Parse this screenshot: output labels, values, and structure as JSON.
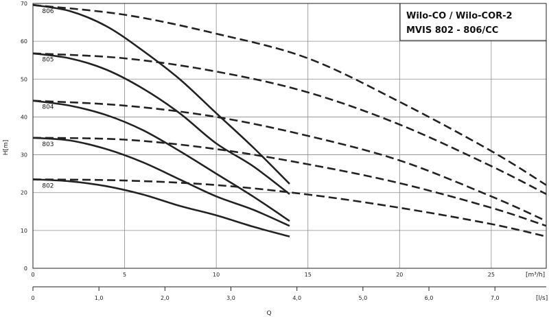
{
  "chart_data": {
    "type": "line",
    "title_lines": [
      "Wilo-CO / Wilo-COR-2",
      "MVIS 802 - 806/CC"
    ],
    "ylabel": "H[m]",
    "xlabel": "Q",
    "x_unit_main": "[m³/h]",
    "x_unit_secondary": "[l/s]",
    "xlim": [
      0,
      28
    ],
    "ylim": [
      0,
      70
    ],
    "x_ticks": [
      "0",
      "5",
      "10",
      "15",
      "20",
      "25"
    ],
    "x_tick_values": [
      0,
      5,
      10,
      15,
      20,
      25
    ],
    "y_ticks": [
      "0",
      "10",
      "20",
      "30",
      "40",
      "50",
      "60",
      "70"
    ],
    "y_tick_values": [
      0,
      10,
      20,
      30,
      40,
      50,
      60,
      70
    ],
    "secondary_ticks": [
      "0",
      "1,0",
      "2,0",
      "3,0",
      "4,0",
      "5,0",
      "6,0",
      "7,0"
    ],
    "secondary_tick_values": [
      0,
      1,
      2,
      3,
      4,
      5,
      6,
      7
    ],
    "grid": true,
    "series": [
      {
        "name": "806",
        "style": "solid",
        "x": [
          0,
          2,
          4,
          6,
          8,
          10,
          12,
          14
        ],
        "y": [
          69.6,
          68.0,
          64.0,
          57.5,
          50.0,
          41.0,
          32.0,
          22.3
        ]
      },
      {
        "name": "805",
        "style": "solid",
        "x": [
          0,
          2,
          4,
          6,
          8,
          10,
          12,
          14
        ],
        "y": [
          56.8,
          55.5,
          52.5,
          47.5,
          41.0,
          33.0,
          27.0,
          19.6
        ]
      },
      {
        "name": "804",
        "style": "solid",
        "x": [
          0,
          2,
          4,
          6,
          8,
          10,
          12,
          14
        ],
        "y": [
          44.3,
          43.0,
          40.5,
          36.5,
          31.0,
          25.0,
          19.0,
          12.5
        ]
      },
      {
        "name": "803",
        "style": "solid",
        "x": [
          0,
          2,
          4,
          6,
          8,
          10,
          12,
          14
        ],
        "y": [
          34.5,
          33.8,
          31.5,
          28.0,
          23.5,
          19.0,
          15.5,
          11.2
        ]
      },
      {
        "name": "802",
        "style": "solid",
        "x": [
          0,
          2,
          4,
          6,
          8,
          10,
          12,
          14
        ],
        "y": [
          23.5,
          23.0,
          21.7,
          19.5,
          16.5,
          14.0,
          11.0,
          8.4
        ]
      },
      {
        "name": "806",
        "style": "dashed",
        "x": [
          0,
          5,
          10,
          15,
          20,
          25,
          28
        ],
        "y": [
          69.6,
          67.0,
          62.0,
          55.5,
          44.0,
          31.0,
          22.0
        ]
      },
      {
        "name": "805",
        "style": "dashed",
        "x": [
          0,
          5,
          10,
          15,
          20,
          25,
          28
        ],
        "y": [
          56.8,
          55.5,
          52.0,
          46.5,
          38.0,
          27.0,
          19.6
        ]
      },
      {
        "name": "804",
        "style": "dashed",
        "x": [
          0,
          5,
          10,
          15,
          20,
          25,
          28
        ],
        "y": [
          44.3,
          43.0,
          40.0,
          35.0,
          28.5,
          19.0,
          12.5
        ]
      },
      {
        "name": "803",
        "style": "dashed",
        "x": [
          0,
          5,
          10,
          15,
          20,
          25,
          28
        ],
        "y": [
          34.5,
          34.0,
          31.5,
          27.5,
          22.5,
          16.0,
          11.2
        ]
      },
      {
        "name": "802",
        "style": "dashed",
        "x": [
          0,
          5,
          10,
          15,
          20,
          25,
          28
        ],
        "y": [
          23.5,
          23.2,
          22.0,
          19.5,
          16.0,
          11.7,
          8.4
        ]
      }
    ],
    "curve_labels": [
      {
        "text": "806",
        "x": 0.5,
        "y": 67.5
      },
      {
        "text": "805",
        "x": 0.5,
        "y": 54.7
      },
      {
        "text": "804",
        "x": 0.5,
        "y": 42.2
      },
      {
        "text": "803",
        "x": 0.5,
        "y": 32.3
      },
      {
        "text": "802",
        "x": 0.5,
        "y": 21.3
      }
    ]
  }
}
